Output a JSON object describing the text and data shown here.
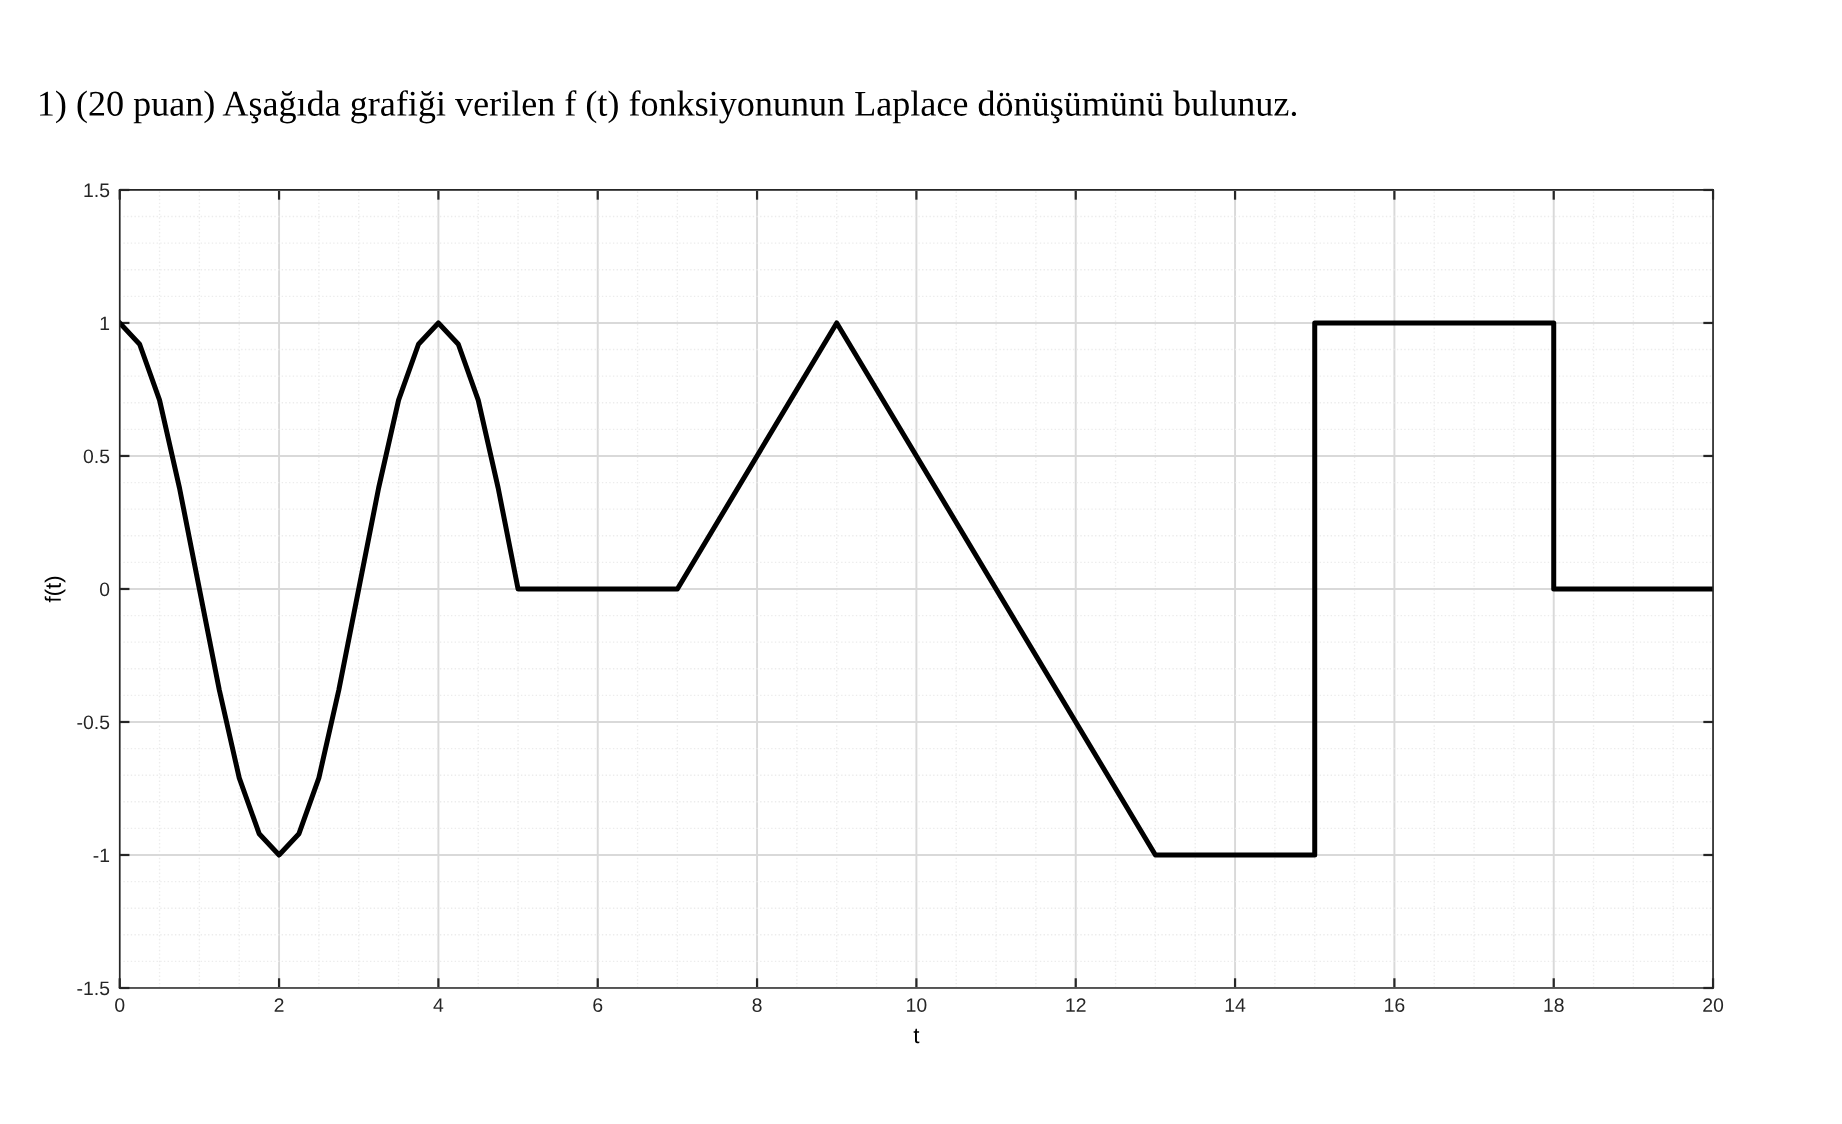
{
  "chart_data": {
    "type": "line",
    "title": "1) (20 puan) Aşağıda grafiği verilen f (t) fonksiyonunun Laplace dönüşümünü bulunuz.",
    "xlabel": "t",
    "ylabel": "f(t)",
    "series": [
      {
        "color": "#000000",
        "x": [
          0,
          0.25,
          0.5,
          0.75,
          1,
          1.25,
          1.5,
          1.75,
          2,
          2.25,
          2.5,
          2.75,
          3,
          3.25,
          3.5,
          3.75,
          4,
          4.25,
          4.5,
          4.75,
          5,
          7,
          9,
          13,
          15,
          15,
          18,
          18,
          20
        ],
        "values": [
          1,
          0.92,
          0.71,
          0.38,
          0,
          -0.38,
          -0.71,
          -0.92,
          -1,
          -0.92,
          -0.71,
          -0.38,
          0,
          0.38,
          0.71,
          0.92,
          1,
          0.92,
          0.71,
          0.38,
          0,
          0,
          1,
          -1,
          -1,
          1,
          1,
          0,
          0
        ]
      }
    ],
    "xlim": [
      0,
      20
    ],
    "xticks": [
      0,
      2,
      4,
      6,
      8,
      10,
      12,
      14,
      16,
      18,
      20
    ],
    "ylim": [
      -1.5,
      1.5
    ],
    "yticks": [
      -1.5,
      -1,
      -0.5,
      0,
      0.5,
      1,
      1.5
    ],
    "grid": true,
    "marker": "none",
    "line_style": "solid",
    "legend": false
  }
}
